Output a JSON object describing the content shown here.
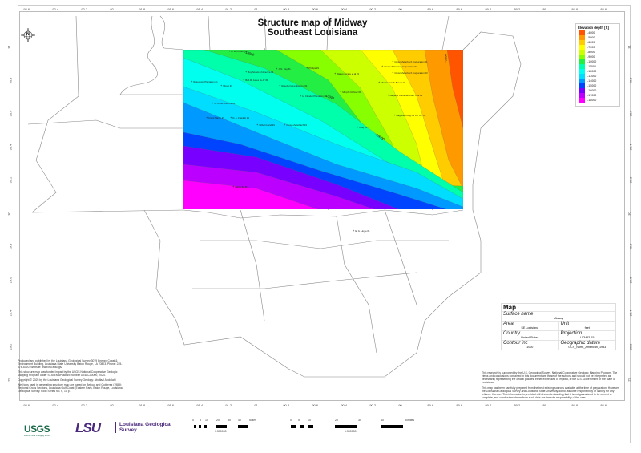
{
  "title": {
    "line1": "Structure map of Midway",
    "line2": "Southeast Louisiana"
  },
  "north_arrow": "N",
  "longitude_ticks": [
    "-92.6",
    "-92.4",
    "-92.2",
    "-92",
    "-91.8",
    "-91.6",
    "-91.4",
    "-91.2",
    "-91",
    "-90.8",
    "-90.6",
    "-90.4",
    "-90.2",
    "-90",
    "-89.8",
    "-89.6",
    "-89.4",
    "-89.2",
    "-89",
    "-88.8",
    "-88.6"
  ],
  "latitude_ticks": [
    "31",
    "30.8",
    "30.6",
    "30.4",
    "30.2",
    "30",
    "29.8",
    "29.6",
    "29.4",
    "29.2",
    "29"
  ],
  "legend": {
    "title": "Elevation depth [ft]",
    "entries": [
      {
        "value": "-4000",
        "color": "#ff5500"
      },
      {
        "value": "-5000",
        "color": "#ff9900"
      },
      {
        "value": "-6000",
        "color": "#ffcc00"
      },
      {
        "value": "-7000",
        "color": "#ffff00"
      },
      {
        "value": "-8000",
        "color": "#ccff00"
      },
      {
        "value": "-9000",
        "color": "#88ff00"
      },
      {
        "value": "-10000",
        "color": "#22ee44"
      },
      {
        "value": "-11000",
        "color": "#00ffaa"
      },
      {
        "value": "-12000",
        "color": "#00ffee"
      },
      {
        "value": "-13000",
        "color": "#00ddff"
      },
      {
        "value": "-14000",
        "color": "#0099ff"
      },
      {
        "value": "-15000",
        "color": "#0044ff"
      },
      {
        "value": "-16000",
        "color": "#7700ff"
      },
      {
        "value": "-17000",
        "color": "#bb00ff"
      },
      {
        "value": "-18000",
        "color": "#ff00ff"
      }
    ]
  },
  "contour_labels": [
    "-10000",
    "-10000",
    "-10000",
    "-5000"
  ],
  "wells": [
    "H. H. Frisson #1",
    "Boy Scouts of America #1",
    "Bob R. Jones \"A-A\" #1",
    "Roseberry Lumber Co. #1",
    "Rosedown Plantation #1",
    "Mosat #1",
    "W. H. McVea et al #1",
    "Frank Martin #1",
    "D. A. Franklin #1",
    "Gilbert Hand #1",
    "Crown Zellerbach #1",
    "H. Claudet Plantation #1",
    "Phillips #1",
    "J. N. Day #1",
    "Crown Zellerbach Corporation #1",
    "Crown Zellerbach Corporation #2",
    "Crown Zellerbach Corporation #3",
    "Mrs. Fannie T. Brooks #1",
    "Watson Grace et al #1",
    "Murphy Rohner #1",
    "Weyland Container Corp. Fee #1",
    "Magnolia Fung Oil Co. Inc. #1",
    "Kelly #1",
    "Lafayette #1",
    "E. G. Hoyle #1"
  ],
  "info_box": {
    "heading": "Map",
    "surface_name_label": "Surface name",
    "surface_name": "Midway",
    "area_label": "Area",
    "area": "SE Louisiana",
    "unit_label": "Unit",
    "unit": "feet",
    "country_label": "Country",
    "country": "United States",
    "projection_label": "Projection",
    "projection": "UTM83-15",
    "contour_label": "Contour inc",
    "contour": "1000",
    "datum_label": "Geographic datum",
    "datum": "GCS_North_American_1983"
  },
  "notes_right": [
    "This research is supported by the U.S. Geological Survey, National Cooperative Geologic Mapping Program. The views and conclusions contained in this document are those of the authors and should not be interpreted as necessarily representing the official policies, either expressed or implied, of the U.S. Government or the state of Louisiana.",
    "This map has been carefully prepared from the best existing sources available at the time of preparation. However, the Louisiana Geological Survey and Louisiana State University do not assume responsibility or liability for any reliance thereon. This information is provided with the understanding that it is not guaranteed to be correct or complete, and conclusions drawn from such data are the sole responsibility of the user."
  ],
  "notes_left": [
    "Produced and published by the Louisiana Geological Survey 3079 Energy, Coast & Environment Building, Louisiana State University Baton Rouge, LA 70803. Phone: 225-578-5320. Website: www.lsu.edu/lgs/",
    "This structure map was funded in part by the USGS National Cooperative Geologic Mapping Program under STATEMAP award number G24AC00000, 2024.",
    "Copyright © 2025 by the Louisiana Geological Survey Geology: Abolfazl Abdollahi",
    "Well tops used in generating structure map are based on Bebout and Gutierrez (1983): Regional Cross Sections, Louisiana Gulf Coast (Eastern Part). Baton Rouge, Louisiana Geological Survey. Folio Series No. 6, 10 p."
  ],
  "logos": {
    "usgs": "USGS",
    "usgs_tagline": "science for a changing world",
    "lsu": "LSU",
    "lgs_line1": "Louisiana Geological",
    "lgs_line2": "Survey"
  },
  "scalebar_km": {
    "ticks": [
      "0",
      "5",
      "10",
      "20",
      "30",
      "40",
      "50km"
    ],
    "ratio": "1:300000"
  },
  "scalebar_miles": {
    "ticks": [
      "0",
      "5",
      "10",
      "20",
      "30",
      "40",
      "50miles"
    ],
    "ratio": "1:300000"
  }
}
